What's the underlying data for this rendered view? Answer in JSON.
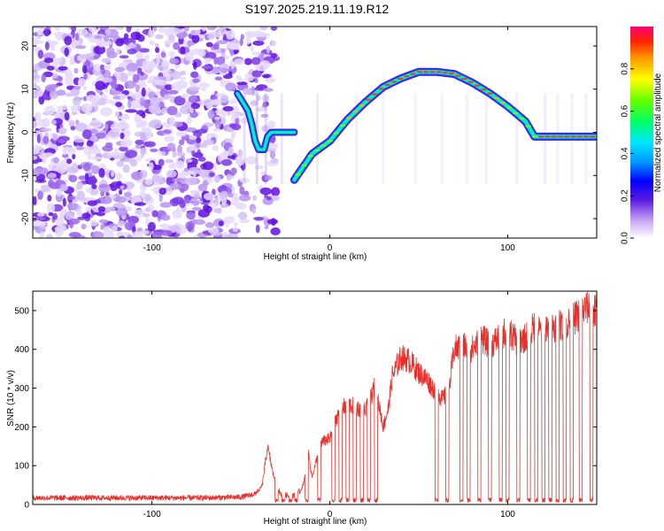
{
  "title": "S197.2025.219.11.19.R12",
  "colors": {
    "snr_line": "#e8302a",
    "axis": "#000000"
  },
  "chart_data": [
    {
      "type": "heatmap",
      "xlabel": "Height of straight line (km)",
      "ylabel": "Frequency (Hz)",
      "xlim": [
        -167,
        150
      ],
      "ylim": [
        -24.5,
        24.5
      ],
      "xticks": [
        -100,
        0,
        100
      ],
      "yticks": [
        -20,
        -10,
        0,
        10,
        20
      ],
      "grid": false,
      "colorbar": {
        "label": "Normalized spectral amplitude",
        "range": [
          0,
          1
        ],
        "ticks": [
          0.0,
          0.2,
          0.4,
          0.6,
          0.8
        ]
      },
      "noise_region_km": [
        -167,
        -30
      ],
      "frequency_trace": {
        "x": [
          -20,
          -10,
          0,
          10,
          20,
          30,
          40,
          50,
          60,
          70,
          80,
          90,
          100,
          110,
          115,
          120,
          130,
          140,
          150
        ],
        "y": [
          -11,
          -5,
          -2,
          3,
          7,
          10.5,
          12.5,
          14,
          14,
          13.5,
          11.5,
          9,
          6,
          2.5,
          -1,
          -1,
          -1,
          -1,
          -1
        ]
      },
      "transient_trace": {
        "x": [
          -52,
          -46,
          -44,
          -42,
          -40,
          -37,
          -35,
          -33,
          -30,
          -28,
          -25,
          -23,
          -20
        ],
        "y": [
          9,
          5,
          2,
          -2,
          -4,
          -4,
          -1,
          0,
          0,
          0,
          0,
          0,
          0
        ]
      }
    },
    {
      "type": "line",
      "xlabel": "Height of straight line (km)",
      "ylabel": "SNR (10 * v/v)",
      "xlim": [
        -167,
        150
      ],
      "ylim": [
        0,
        550
      ],
      "xticks": [
        -100,
        0,
        100
      ],
      "yticks": [
        0,
        100,
        200,
        300,
        400,
        500
      ],
      "grid": false,
      "series": [
        {
          "x": [
            -167,
            -150,
            -130,
            -110,
            -90,
            -70,
            -50,
            -42,
            -38,
            -35,
            -32,
            -28,
            -22,
            -18,
            -15,
            -12,
            -10,
            -5,
            0,
            5,
            10,
            15,
            20,
            25,
            28,
            30,
            33,
            35,
            40,
            45,
            50,
            55,
            58,
            60,
            62,
            63,
            65,
            67,
            70,
            75,
            80,
            85,
            90,
            95,
            100,
            105,
            110,
            115,
            120,
            125,
            130,
            135,
            140,
            145,
            150
          ],
          "y": [
            10,
            10,
            10,
            10,
            10,
            10,
            12,
            20,
            50,
            150,
            80,
            20,
            15,
            20,
            50,
            130,
            70,
            160,
            170,
            240,
            260,
            250,
            240,
            300,
            250,
            200,
            250,
            330,
            380,
            370,
            340,
            320,
            300,
            290,
            280,
            270,
            280,
            300,
            400,
            410,
            400,
            430,
            410,
            430,
            450,
            420,
            430,
            460,
            440,
            460,
            460,
            470,
            490,
            510,
            500
          ]
        }
      ]
    }
  ]
}
